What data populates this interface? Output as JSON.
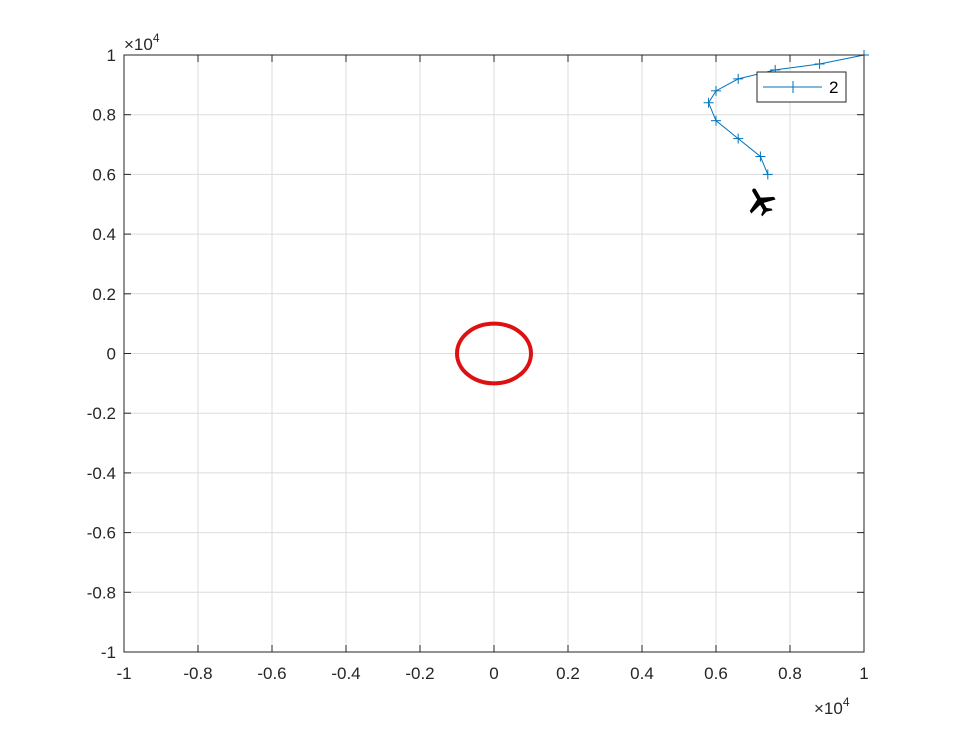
{
  "chart_data": {
    "type": "line",
    "title": "",
    "xlabel": "",
    "ylabel": "",
    "xlim": [
      -10000,
      10000
    ],
    "ylim": [
      -10000,
      10000
    ],
    "grid": true,
    "legend_position": "top-right",
    "x_ticks": [
      -10000,
      -8000,
      -6000,
      -4000,
      -2000,
      0,
      2000,
      4000,
      6000,
      8000,
      10000
    ],
    "x_tick_labels": [
      "-1",
      "-0.8",
      "-0.6",
      "-0.4",
      "-0.2",
      "0",
      "0.2",
      "0.4",
      "0.6",
      "0.8",
      "1"
    ],
    "y_ticks": [
      -10000,
      -8000,
      -6000,
      -4000,
      -2000,
      0,
      2000,
      4000,
      6000,
      8000,
      10000
    ],
    "y_tick_labels": [
      "-1",
      "-0.8",
      "-0.6",
      "-0.4",
      "-0.2",
      "0",
      "0.2",
      "0.4",
      "0.6",
      "0.8",
      "1"
    ],
    "x_exponent": {
      "base": "×10",
      "power": "4"
    },
    "y_exponent": {
      "base": "×10",
      "power": "4"
    },
    "series": [
      {
        "name": "2",
        "color": "#0072BD",
        "marker": "plus",
        "x": [
          10000,
          8800,
          7600,
          6600,
          6000,
          5800,
          6000,
          6600,
          7200,
          7400
        ],
        "y": [
          10000,
          9700,
          9500,
          9200,
          8800,
          8400,
          7800,
          7200,
          6600,
          6000
        ]
      }
    ],
    "circle": {
      "center": [
        0,
        0
      ],
      "rx": 1000,
      "ry": 1000,
      "color": "#DD1111"
    },
    "aircraft": {
      "icon": "airplane-icon",
      "x": 7200,
      "y": 5100,
      "color": "#000000"
    }
  }
}
